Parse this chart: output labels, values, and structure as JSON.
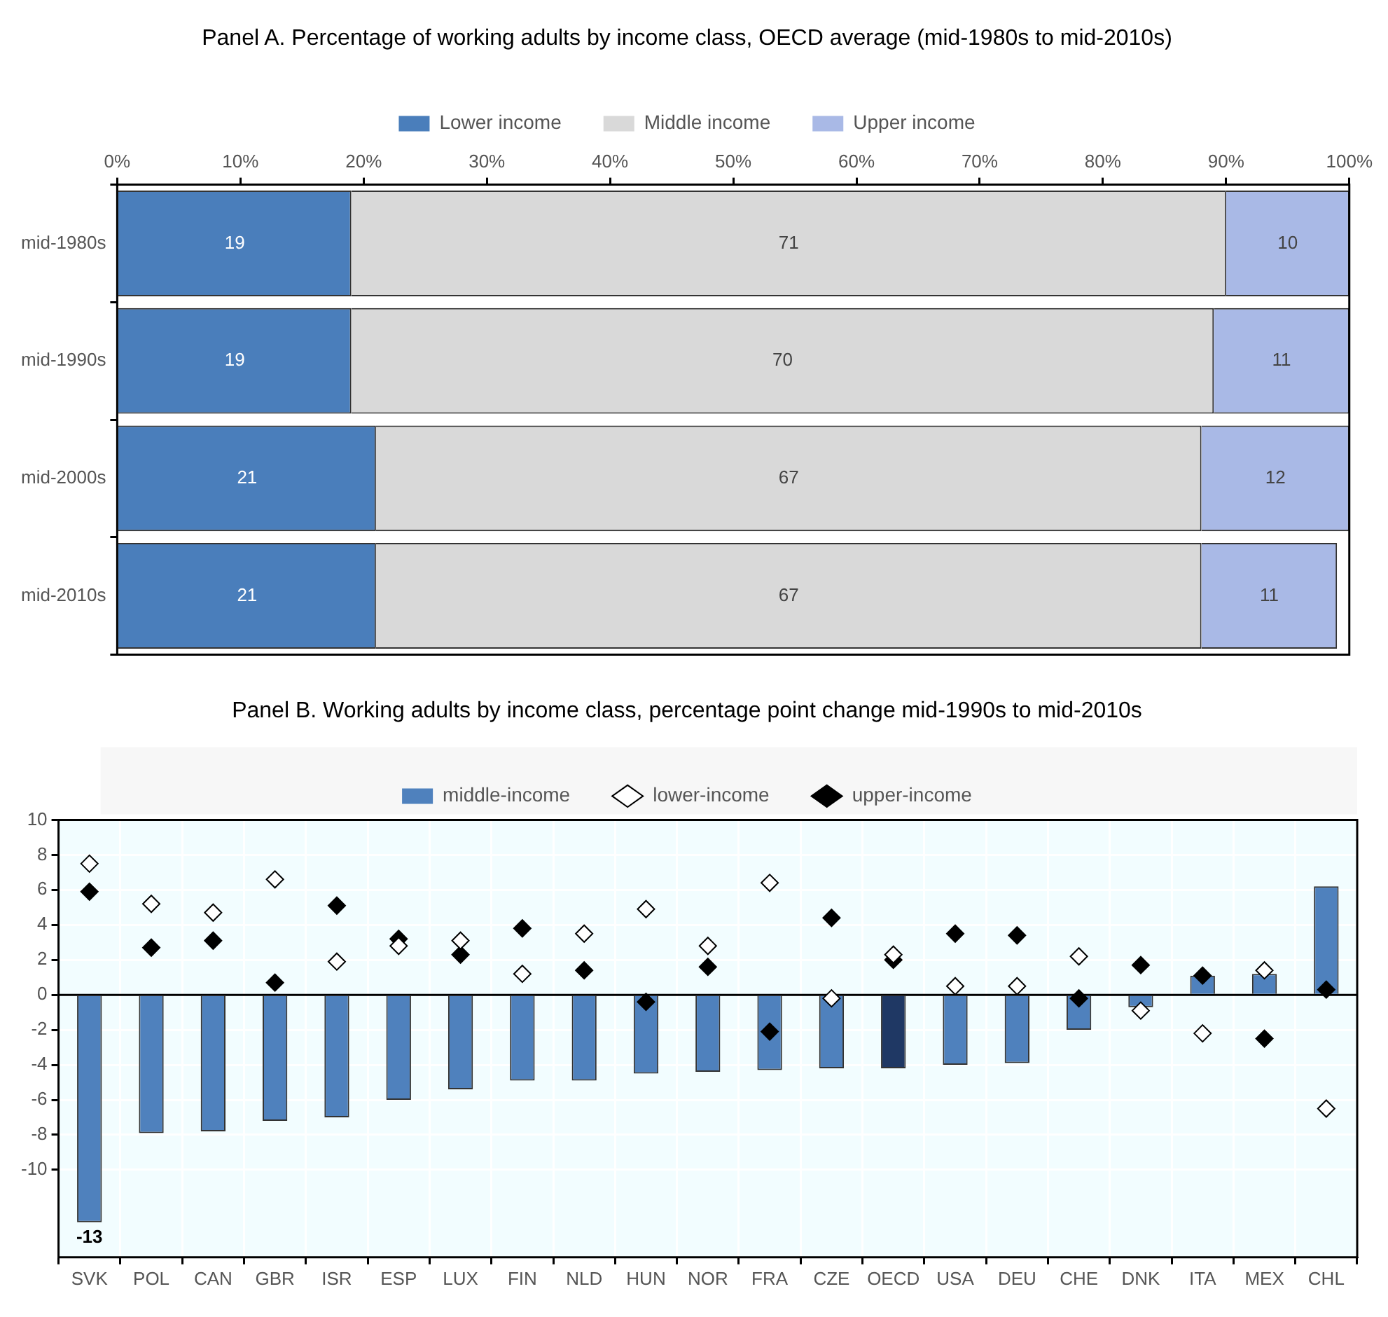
{
  "chart_data": [
    {
      "type": "bar",
      "title": "Panel A. Percentage of working adults by income class, OECD average (mid-1980s to mid-2010s)",
      "orientation": "horizontal",
      "stacked": true,
      "categories": [
        "mid-1980s",
        "mid-1990s",
        "mid-2000s",
        "mid-2010s"
      ],
      "series": [
        {
          "name": "Lower income",
          "color": "#4a7ebb",
          "values": [
            19,
            19,
            21,
            21
          ]
        },
        {
          "name": "Middle income",
          "color": "#d9d9d9",
          "values": [
            71,
            70,
            67,
            67
          ]
        },
        {
          "name": "Upper income",
          "color": "#a9b9e6",
          "values": [
            10,
            11,
            12,
            11
          ]
        }
      ],
      "xlim": [
        0,
        100
      ],
      "xticks": [
        {
          "value": 0,
          "label": "0%"
        },
        {
          "value": 10,
          "label": "10%"
        },
        {
          "value": 20,
          "label": "20%"
        },
        {
          "value": 30,
          "label": "30%"
        },
        {
          "value": 40,
          "label": "40%"
        },
        {
          "value": 50,
          "label": "50%"
        },
        {
          "value": 60,
          "label": "60%"
        },
        {
          "value": 70,
          "label": "70%"
        },
        {
          "value": 80,
          "label": "80%"
        },
        {
          "value": 90,
          "label": "90%"
        },
        {
          "value": 100,
          "label": "100%"
        }
      ],
      "data_labels": true,
      "legend": "top"
    },
    {
      "type": "bar",
      "title": "Panel B. Working adults by income class, percentage point change mid-1990s to mid-2010s",
      "categories": [
        "SVK",
        "POL",
        "CAN",
        "GBR",
        "ISR",
        "ESP",
        "LUX",
        "FIN",
        "NLD",
        "HUN",
        "NOR",
        "FRA",
        "CZE",
        "OECD",
        "USA",
        "DEU",
        "CHE",
        "DNK",
        "ITA",
        "MEX",
        "CHL"
      ],
      "series": [
        {
          "name": "middle-income",
          "type": "bar",
          "colors": [
            "#4f81bd",
            "#4f81bd",
            "#4f81bd",
            "#4f81bd",
            "#4f81bd",
            "#4f81bd",
            "#4f81bd",
            "#4f81bd",
            "#4f81bd",
            "#4f81bd",
            "#4f81bd",
            "#4f81bd",
            "#4f81bd",
            "#1f3864",
            "#4f81bd",
            "#4f81bd",
            "#4f81bd",
            "#4f81bd",
            "#4f81bd",
            "#4f81bd",
            "#4f81bd"
          ],
          "values": [
            -13,
            -7.9,
            -7.8,
            -7.2,
            -7.0,
            -6.0,
            -5.4,
            -4.9,
            -4.9,
            -4.5,
            -4.4,
            -4.3,
            -4.2,
            -4.2,
            -4.0,
            -3.9,
            -2.0,
            -0.7,
            1.1,
            1.2,
            6.2
          ],
          "value_labels": [
            "-13",
            null,
            null,
            null,
            null,
            null,
            null,
            null,
            null,
            null,
            null,
            null,
            null,
            null,
            null,
            null,
            null,
            null,
            null,
            null,
            null
          ]
        },
        {
          "name": "lower-income",
          "type": "scatter",
          "color": "#ffffff",
          "marker": "diamond",
          "values": [
            7.5,
            5.2,
            4.7,
            6.6,
            1.9,
            2.8,
            3.1,
            1.2,
            3.5,
            4.9,
            2.8,
            6.4,
            -0.2,
            2.3,
            0.5,
            0.5,
            2.2,
            -0.9,
            -2.2,
            1.4,
            -6.5
          ]
        },
        {
          "name": "upper-income",
          "type": "scatter",
          "color": "#000000",
          "marker": "diamond",
          "values": [
            5.9,
            2.7,
            3.1,
            0.7,
            5.1,
            3.2,
            2.3,
            3.8,
            1.4,
            -0.4,
            1.6,
            -2.1,
            4.4,
            2.0,
            3.5,
            3.4,
            -0.2,
            1.7,
            1.1,
            -2.5,
            0.3
          ]
        }
      ],
      "ylim": [
        -15,
        10
      ],
      "yticks": [
        -10,
        -8,
        -6,
        -4,
        -2,
        0,
        2,
        4,
        6,
        8,
        10
      ],
      "grid": true,
      "legend": "top"
    }
  ]
}
